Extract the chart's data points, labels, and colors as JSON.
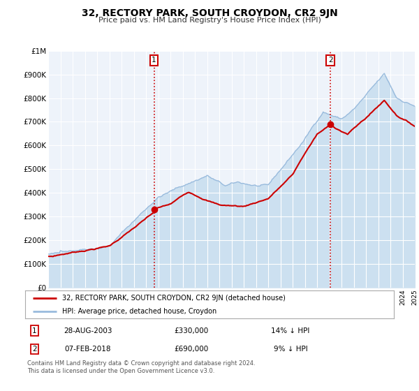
{
  "title": "32, RECTORY PARK, SOUTH CROYDON, CR2 9JN",
  "subtitle": "Price paid vs. HM Land Registry's House Price Index (HPI)",
  "legend_line1": "32, RECTORY PARK, SOUTH CROYDON, CR2 9JN (detached house)",
  "legend_line2": "HPI: Average price, detached house, Croydon",
  "annotation1_date": "28-AUG-2003",
  "annotation1_price": "£330,000",
  "annotation1_hpi": "14% ↓ HPI",
  "annotation2_date": "07-FEB-2018",
  "annotation2_price": "£690,000",
  "annotation2_hpi": "9% ↓ HPI",
  "footer": "Contains HM Land Registry data © Crown copyright and database right 2024.\nThis data is licensed under the Open Government Licence v3.0.",
  "sale1_date_x": 2003.66,
  "sale1_price_y": 330000,
  "sale2_date_x": 2018.1,
  "sale2_price_y": 690000,
  "price_line_color": "#cc0000",
  "hpi_line_color": "#99bbdd",
  "hpi_fill_color": "#cce0f0",
  "vline_color": "#cc0000",
  "dot_color": "#cc0000",
  "plot_bg_color": "#eef3fa",
  "grid_color": "#ffffff",
  "ylim_max": 1000000,
  "ylim_min": 0,
  "xlim_min": 1995,
  "xlim_max": 2025,
  "ytick_values": [
    0,
    100000,
    200000,
    300000,
    400000,
    500000,
    600000,
    700000,
    800000,
    900000,
    1000000
  ],
  "ytick_labels": [
    "£0",
    "£100K",
    "£200K",
    "£300K",
    "£400K",
    "£500K",
    "£600K",
    "£700K",
    "£800K",
    "£900K",
    "£1M"
  ]
}
